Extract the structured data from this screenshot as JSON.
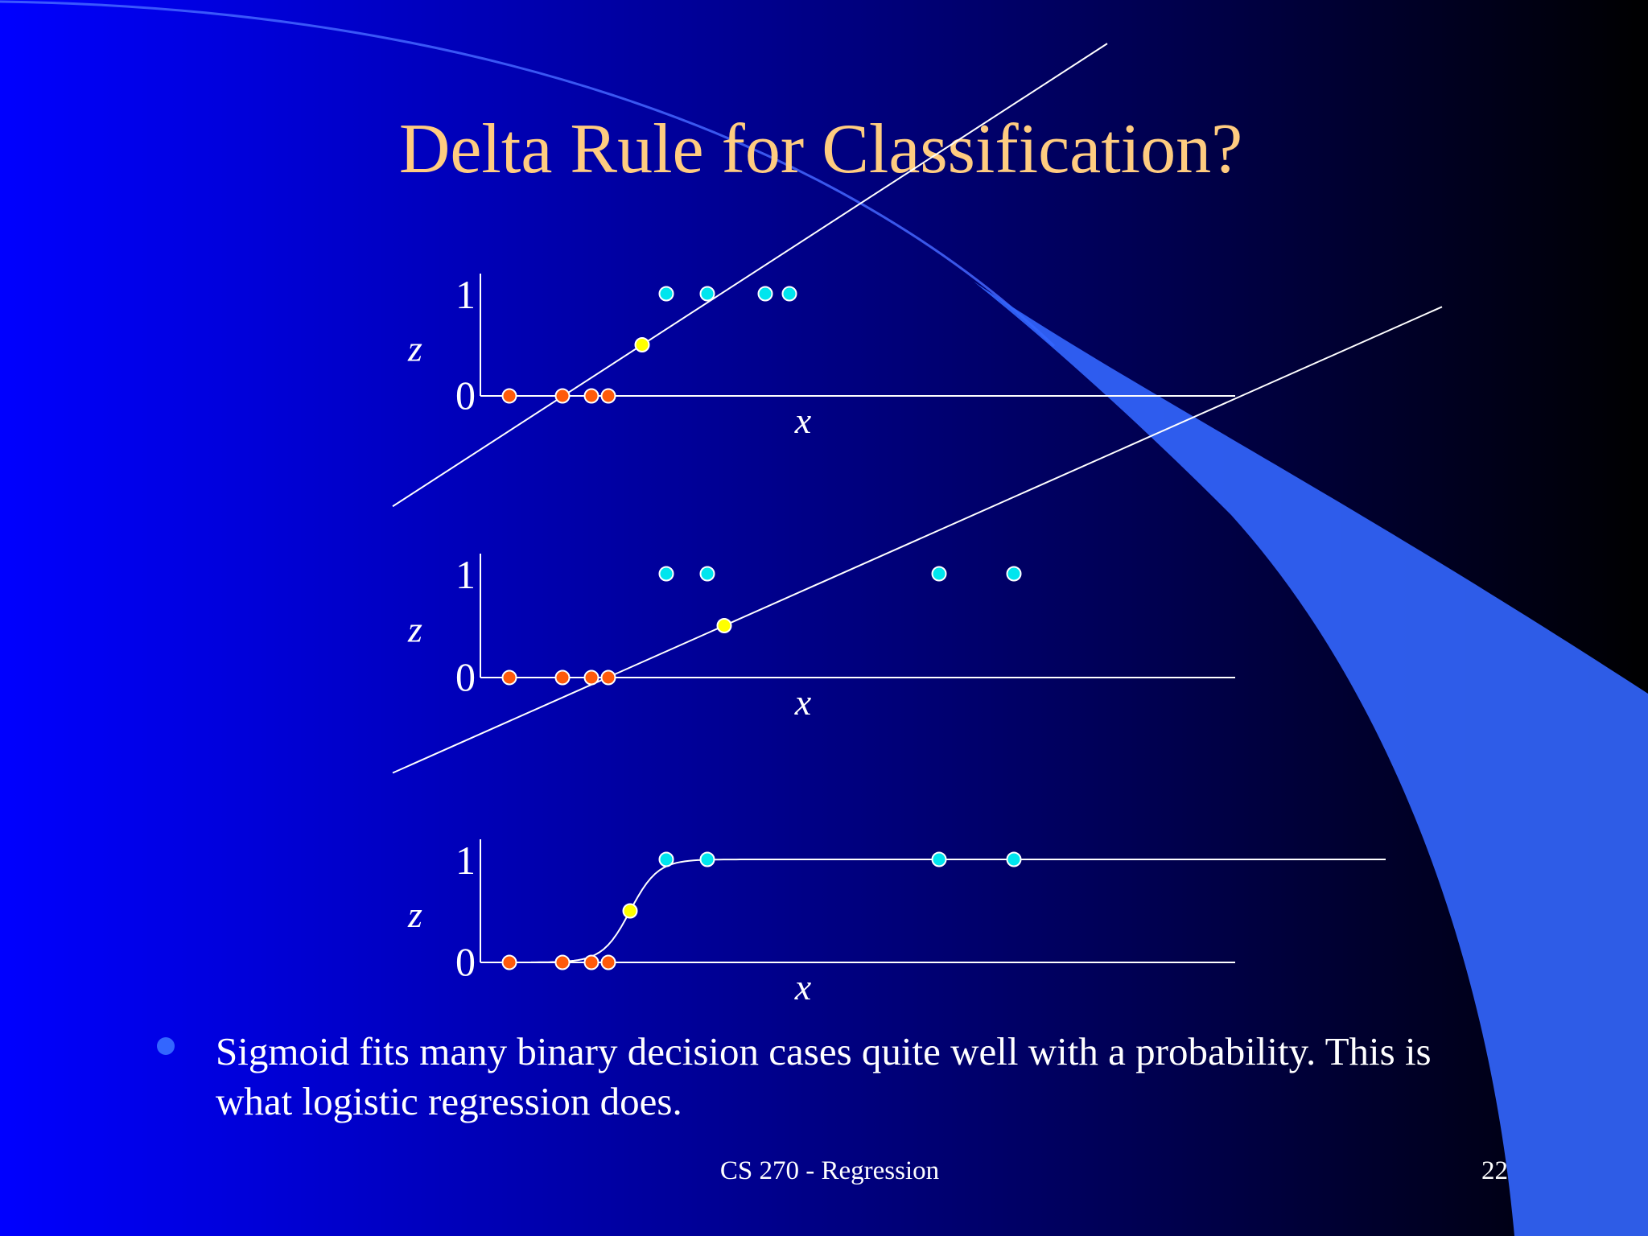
{
  "slide": {
    "title": "Delta Rule for Classification?",
    "bullet": {
      "line1": "Sigmoid fits many binary decision cases quite well with a probability.  This is",
      "line2": "what logistic regression does."
    },
    "footer": "CS 270 - Regression",
    "page_number": "22"
  },
  "colors": {
    "title": "#ffcc80",
    "text": "#ffffff",
    "class0_point": "#ff5a0a",
    "class1_point": "#00e5ee",
    "boundary_point": "#ffff00",
    "accent_swoosh": "#3366ff",
    "bullet_dot": "#3366ff"
  },
  "chart_data": [
    {
      "type": "scatter",
      "fit": "line",
      "ylabel": "z",
      "xlabel": "x",
      "y_ticks": [
        "1",
        "0"
      ],
      "points": {
        "class0": {
          "x": [
            0.6,
            1.7,
            2.3,
            2.65
          ],
          "z": [
            0,
            0,
            0,
            0
          ]
        },
        "boundary": {
          "x": [
            3.35
          ],
          "z": [
            0.5
          ]
        },
        "class1": {
          "x": [
            3.85,
            4.7,
            5.9,
            6.4
          ],
          "z": [
            1,
            1,
            1,
            1
          ]
        }
      },
      "fit_line": {
        "slope": 0.306,
        "intercept": -0.525
      }
    },
    {
      "type": "scatter",
      "fit": "line",
      "ylabel": "z",
      "xlabel": "x",
      "y_ticks": [
        "1",
        "0"
      ],
      "points": {
        "class0": {
          "x": [
            0.6,
            1.7,
            2.3,
            2.65
          ],
          "z": [
            0,
            0,
            0,
            0
          ]
        },
        "boundary": {
          "x": [
            5.05
          ],
          "z": [
            0.5
          ]
        },
        "class1": {
          "x": [
            3.85,
            4.7,
            9.5,
            11.05
          ],
          "z": [
            1,
            1,
            1,
            1
          ]
        }
      },
      "fit_line": {
        "slope": 0.2066,
        "intercept": -0.5433
      }
    },
    {
      "type": "scatter",
      "fit": "sigmoid",
      "ylabel": "z",
      "xlabel": "x",
      "y_ticks": [
        "1",
        "0"
      ],
      "points": {
        "class0": {
          "x": [
            0.6,
            1.7,
            2.3,
            2.65
          ],
          "z": [
            0,
            0,
            0,
            0
          ]
        },
        "boundary": {
          "x": [
            3.1
          ],
          "z": [
            0.5
          ]
        },
        "class1": {
          "x": [
            3.85,
            4.7,
            9.5,
            11.05
          ],
          "z": [
            1,
            1,
            1,
            1
          ]
        }
      },
      "fit_sigmoid": {
        "center": 3.1,
        "steepness": 3.5
      }
    }
  ]
}
